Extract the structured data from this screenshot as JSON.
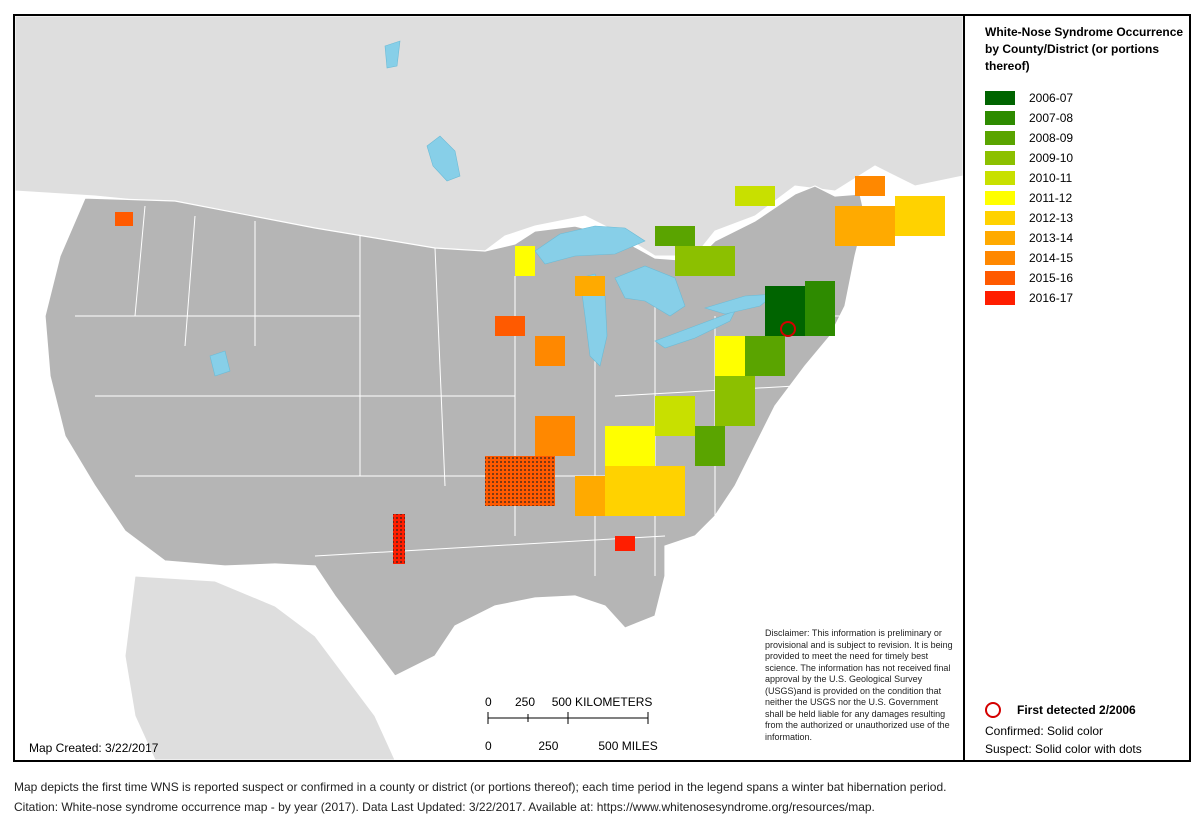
{
  "legend": {
    "title": "White-Nose Syndrome Occurrence by County/District (or portions thereof)",
    "items": [
      {
        "label": "2006-07",
        "color": "#006400"
      },
      {
        "label": "2007-08",
        "color": "#2e8b00"
      },
      {
        "label": "2008-09",
        "color": "#5aa400"
      },
      {
        "label": "2009-10",
        "color": "#8cc000"
      },
      {
        "label": "2010-11",
        "color": "#c8e000"
      },
      {
        "label": "2011-12",
        "color": "#ffff00"
      },
      {
        "label": "2012-13",
        "color": "#ffd200"
      },
      {
        "label": "2013-14",
        "color": "#ffaa00"
      },
      {
        "label": "2014-15",
        "color": "#ff8800"
      },
      {
        "label": "2015-16",
        "color": "#ff5a00"
      },
      {
        "label": "2016-17",
        "color": "#ff1e00"
      }
    ],
    "first_detected": "First detected 2/2006",
    "confirmed": "Confirmed:  Solid color",
    "suspect": "Suspect:  Solid color with dots"
  },
  "disclaimer": "Disclaimer: This information is preliminary or provisional and is subject to revision. It is being provided to meet the need for timely best science. The information has not received final approval by the U.S. Geological Survey (USGS)and is provided on the condition that neither the USGS nor the U.S. Government shall be held liable for any damages resulting from the authorized or unauthorized use of the information.",
  "map_created": "Map Created:  3/22/2017",
  "scale": {
    "km_label": "0       250     500 KILOMETERS",
    "mi_label": "0              250            500 MILES"
  },
  "footer": {
    "note": "Map depicts the first time WNS is reported suspect or confirmed in a county or district (or portions thereof); each time period in the legend spans a winter bat hibernation period.",
    "citation": "Citation: White-nose syndrome occurrence map - by year (2017).  Data Last Updated: 3/22/2017. Available at: https://www.whitenosesyndrome.org/resources/map."
  },
  "colors": {
    "us_land": "#b5b5b5",
    "other_land": "#dedede",
    "water": "#87cfe8",
    "border": "#ffffff"
  }
}
